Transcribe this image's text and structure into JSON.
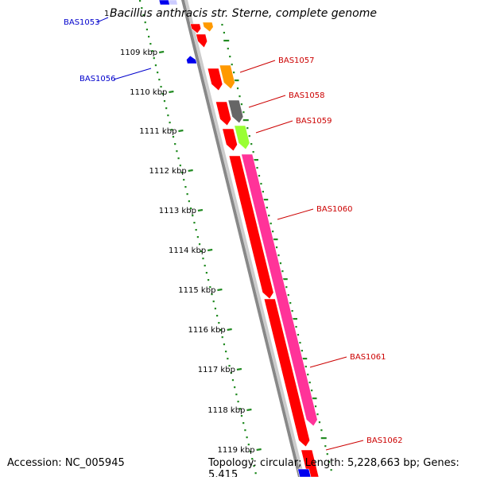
{
  "title": "Bacillus anthracis str. Sterne, complete genome",
  "footer": {
    "accession": "Accession: NC_005945",
    "topology": "Topology: circular; Length: 5,228,663 bp; Genes: 5,415"
  },
  "top_mark": "1",
  "ticks": [
    {
      "label": "1109 kbp"
    },
    {
      "label": "1110 kbp"
    },
    {
      "label": "1111 kbp"
    },
    {
      "label": "1112 kbp"
    },
    {
      "label": "1113 kbp"
    },
    {
      "label": "1114 kbp"
    },
    {
      "label": "1115 kbp"
    },
    {
      "label": "1116 kbp"
    },
    {
      "label": "1117 kbp"
    },
    {
      "label": "1118 kbp"
    },
    {
      "label": "1119 kbp"
    }
  ],
  "gene_labels": [
    {
      "name": "BAS1053",
      "strand": "reverse",
      "color": "#0000cc"
    },
    {
      "name": "BAS1056",
      "strand": "reverse",
      "color": "#0000cc"
    },
    {
      "name": "BAS1057",
      "strand": "forward",
      "color": "#cc0000"
    },
    {
      "name": "BAS1058",
      "strand": "forward",
      "color": "#cc0000"
    },
    {
      "name": "BAS1059",
      "strand": "forward",
      "color": "#cc0000"
    },
    {
      "name": "BAS1060",
      "strand": "forward",
      "color": "#cc0000"
    },
    {
      "name": "BAS1061",
      "strand": "forward",
      "color": "#cc0000"
    },
    {
      "name": "BAS1062",
      "strand": "forward",
      "color": "#cc0000"
    }
  ],
  "colors": {
    "forward_cds": "#ff0000",
    "reverse_cds": "#0000ee",
    "category_orange": "#ff9900",
    "category_grey": "#666666",
    "category_lime": "#99ff33",
    "category_pink": "#ff3399",
    "backbone": "#888888",
    "ticks": "#228b22"
  }
}
